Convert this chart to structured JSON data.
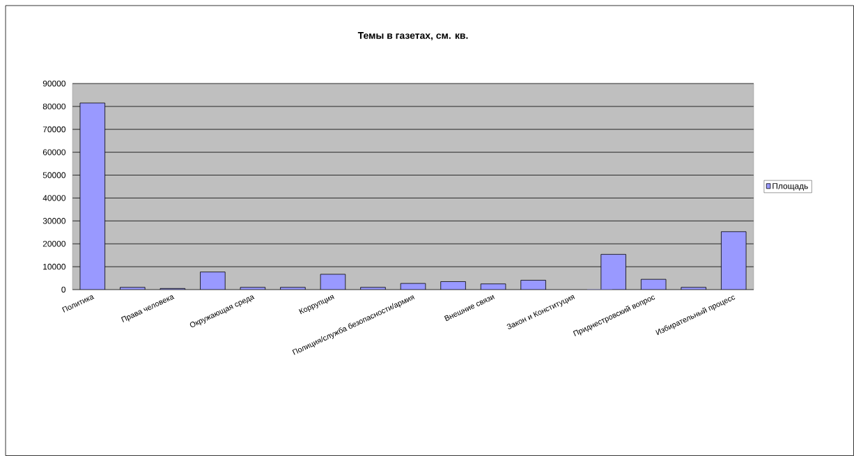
{
  "chart_data": {
    "type": "bar",
    "title": "Темы в газетах, см. кв.",
    "categories": [
      "Политика",
      null,
      "Права человека",
      null,
      "Окружающая среда",
      null,
      "Коррупция",
      null,
      "Полиция/служба безопасности/армия",
      null,
      "Внешние связи",
      null,
      "Закон и Конституция",
      null,
      "Приднестровский вопрос",
      null,
      "Избирательный процесс"
    ],
    "series": [
      {
        "name": "Площадь",
        "color": "#9999ff",
        "values": [
          81500,
          1000,
          500,
          7700,
          1000,
          1000,
          6700,
          1000,
          2700,
          3500,
          2500,
          4100,
          0,
          15400,
          4500,
          1000,
          25300
        ]
      }
    ],
    "ylim": [
      0,
      90000
    ],
    "yticks": [
      0,
      10000,
      20000,
      30000,
      40000,
      50000,
      60000,
      70000,
      80000,
      90000
    ],
    "grid": "y",
    "legend": "right"
  }
}
